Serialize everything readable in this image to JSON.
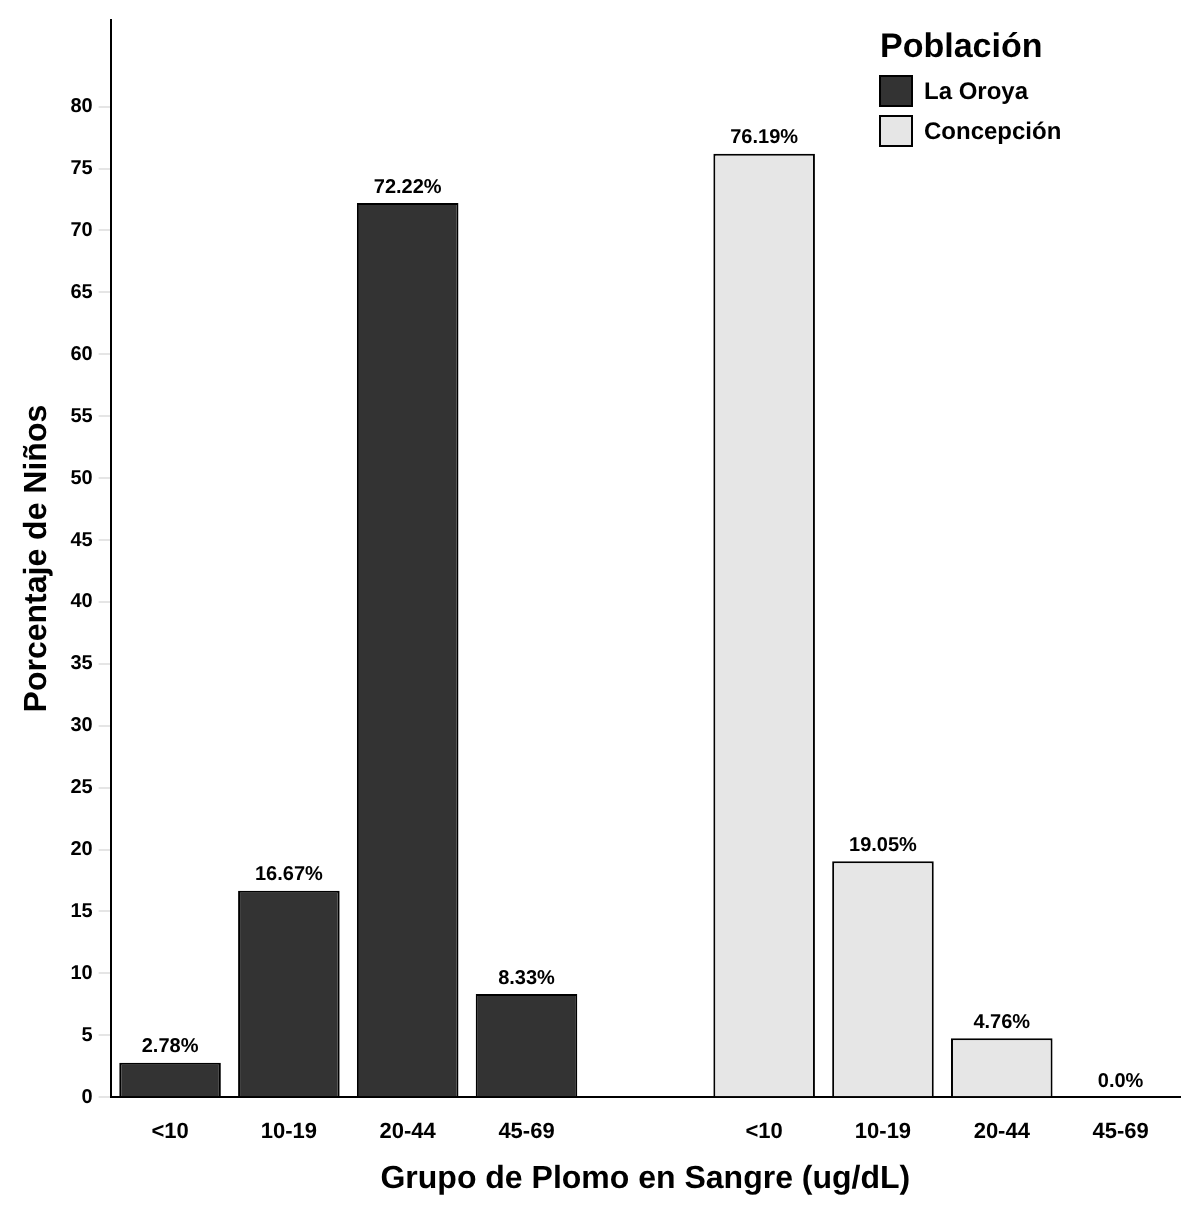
{
  "chart_data": {
    "type": "bar",
    "xlabel": "Grupo de Plomo en Sangre (ug/dL)",
    "ylabel": "Porcentaje de Niños",
    "legend_title": "Población",
    "categories": [
      "<10",
      "10-19",
      "20-44",
      "45-69",
      null,
      "<10",
      "10-19",
      "20-44",
      "45-69"
    ],
    "series": [
      {
        "name": "La Oroya",
        "color": "#333333",
        "values": [
          2.78,
          16.67,
          72.22,
          8.33,
          null,
          null,
          null,
          null,
          null
        ],
        "value_labels": [
          "2.78%",
          "16.67%",
          "72.22%",
          "8.33%",
          null,
          null,
          null,
          null,
          null
        ]
      },
      {
        "name": "Concepción",
        "color": "#e6e6e6",
        "values": [
          null,
          null,
          null,
          null,
          null,
          76.19,
          19.05,
          4.76,
          0.0
        ],
        "value_labels": [
          null,
          null,
          null,
          null,
          null,
          "76.19%",
          "19.05%",
          "4.76%",
          "0.0%"
        ]
      }
    ],
    "ylim": [
      0,
      87
    ],
    "yticks": [
      0,
      5,
      10,
      15,
      20,
      25,
      30,
      35,
      40,
      45,
      50,
      55,
      60,
      65,
      70,
      75,
      80
    ],
    "grid": false,
    "legend": "top right"
  }
}
